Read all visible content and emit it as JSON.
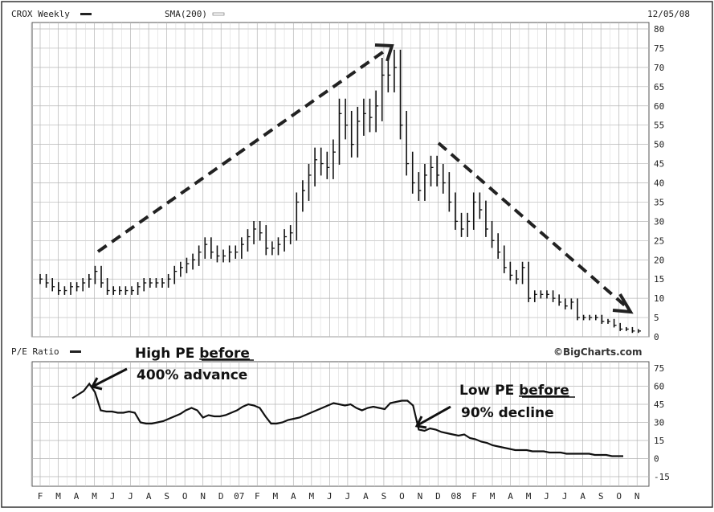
{
  "header": {
    "symbol": "CROX Weekly",
    "sma": "SMA(200)",
    "date": "12/05/08"
  },
  "lower_header": {
    "label": "P/E Ratio",
    "brand": "©BigCharts.com"
  },
  "annotations": {
    "high_pe_1": "High PE",
    "high_pe_2": "before",
    "high_pe_3": "400% advance",
    "low_pe_1": "Low PE",
    "low_pe_2": "before",
    "low_pe_3": "90% decline"
  },
  "colors": {
    "grid": "#b5b5b5",
    "bars": "#111111",
    "arrow": "#222222",
    "frame": "#444444",
    "panel_bg": "#ffffff"
  },
  "chart_data": [
    {
      "type": "ohlc-bar",
      "title": "CROX Weekly",
      "ylim": [
        0,
        80
      ],
      "y_ticks": [
        0,
        5,
        10,
        15,
        20,
        25,
        30,
        35,
        40,
        45,
        50,
        55,
        60,
        65,
        70,
        75,
        80
      ],
      "x_ticks": [
        "F",
        "M",
        "A",
        "M",
        "J",
        "J",
        "A",
        "S",
        "O",
        "N",
        "D",
        "07",
        "F",
        "M",
        "A",
        "M",
        "J",
        "J",
        "A",
        "S",
        "O",
        "N",
        "D",
        "08",
        "F",
        "M",
        "A",
        "M",
        "J",
        "J",
        "A",
        "S",
        "O",
        "N"
      ],
      "grid": true,
      "approx_close": [
        15,
        14,
        13,
        12,
        12,
        13,
        13,
        14,
        15,
        17,
        14,
        12,
        12,
        12,
        12,
        12,
        13,
        14,
        14,
        14,
        14,
        15,
        17,
        18,
        19,
        20,
        22,
        24,
        22,
        21,
        21,
        22,
        22,
        24,
        26,
        28,
        27,
        23,
        23,
        24,
        26,
        27,
        35,
        38,
        42,
        46,
        45,
        44,
        48,
        58,
        55,
        50,
        56,
        58,
        57,
        60,
        68,
        68,
        70,
        55,
        45,
        40,
        38,
        42,
        44,
        42,
        40,
        35,
        30,
        28,
        30,
        35,
        33,
        28,
        25,
        22,
        18,
        16,
        15,
        18,
        10,
        11,
        11,
        11,
        10,
        9,
        8,
        9,
        5,
        5,
        5,
        5,
        4,
        4,
        3,
        2,
        2,
        1.5,
        1.5
      ],
      "trend_arrows": [
        "up",
        "down"
      ]
    },
    {
      "type": "line",
      "title": "P/E Ratio",
      "ylim": [
        -15,
        75
      ],
      "y_ticks": [
        -15,
        0,
        15,
        30,
        45,
        60,
        75
      ],
      "x_ticks": [
        "F",
        "M",
        "A",
        "M",
        "J",
        "J",
        "A",
        "S",
        "O",
        "N",
        "D",
        "07",
        "F",
        "M",
        "A",
        "M",
        "J",
        "J",
        "A",
        "S",
        "O",
        "N",
        "D",
        "08",
        "F",
        "M",
        "A",
        "M",
        "J",
        "J",
        "A",
        "S",
        "O",
        "N"
      ],
      "grid": true,
      "approx_values": [
        50,
        53,
        56,
        62,
        55,
        40,
        39,
        39,
        38,
        38,
        39,
        38,
        30,
        29,
        29,
        30,
        31,
        33,
        35,
        37,
        40,
        42,
        40,
        34,
        36,
        35,
        35,
        36,
        38,
        40,
        43,
        45,
        44,
        42,
        35,
        29,
        29,
        30,
        32,
        33,
        34,
        36,
        38,
        40,
        42,
        44,
        46,
        45,
        44,
        45,
        42,
        40,
        42,
        43,
        42,
        41,
        46,
        47,
        48,
        48,
        44,
        24,
        23,
        25,
        24,
        22,
        21,
        20,
        19,
        20,
        17,
        16,
        14,
        13,
        11,
        10,
        9,
        8,
        7,
        7,
        7,
        6,
        6,
        6,
        5,
        5,
        5,
        4,
        4,
        4,
        4,
        4,
        3,
        3,
        3,
        2,
        2,
        2
      ],
      "arrows": [
        "high-pe-pointer",
        "low-pe-pointer"
      ]
    }
  ]
}
